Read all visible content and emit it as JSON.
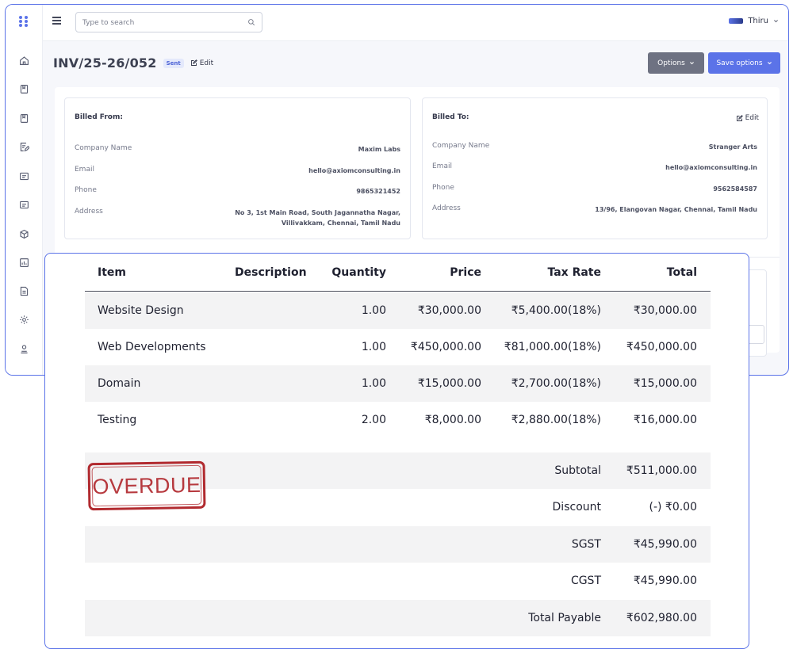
{
  "topbar": {
    "search_placeholder": "Type to search",
    "user_name": "Thiru"
  },
  "icons": {
    "logo": "app-logo-icon",
    "menu": "hamburger-icon",
    "search": "search-icon",
    "user_caret": "chevron-down-icon"
  },
  "sidebar": {
    "items": [
      "home-icon",
      "invoice-icon",
      "quote-icon",
      "edit-note-icon",
      "card-icon",
      "wallet-icon",
      "box-icon",
      "report-icon",
      "document-icon",
      "settings-icon",
      "user-icon"
    ]
  },
  "invoice": {
    "number": "INV/25-26/052",
    "status": "Sent",
    "edit_label": "Edit"
  },
  "actions": {
    "options_label": "Options",
    "save_label": "Save options"
  },
  "billed_from": {
    "title": "Billed From:",
    "fields": [
      {
        "label": "Company Name",
        "value": "Maxim Labs"
      },
      {
        "label": "Email",
        "value": "hello@axiomconsulting.in"
      },
      {
        "label": "Phone",
        "value": "9865321452"
      },
      {
        "label": "Address",
        "value": "No 3, 1st Main Road, South Jagannatha Nagar,",
        "value2": "Villivakkam, Chennai, Tamil Nadu"
      }
    ]
  },
  "billed_to": {
    "title": "Billed To:",
    "edit_label": "Edit",
    "fields": [
      {
        "label": "Company Name",
        "value": "Stranger Arts"
      },
      {
        "label": "Email",
        "value": "hello@axiomconsulting.in"
      },
      {
        "label": "Phone",
        "value": "9562584587"
      },
      {
        "label": "Address",
        "value": "13/96, Elangovan Nagar, Chennai, Tamil Nadu"
      }
    ]
  },
  "table": {
    "headers": {
      "item": "Item",
      "description": "Description",
      "quantity": "Quantity",
      "price": "Price",
      "tax_rate": "Tax Rate",
      "total": "Total"
    },
    "rows": [
      {
        "item": "Website Design",
        "description": "",
        "quantity": "1.00",
        "price": "₹30,000.00",
        "tax": "₹5,400.00(18%)",
        "total": "₹30,000.00"
      },
      {
        "item": "Web Developments",
        "description": "",
        "quantity": "1.00",
        "price": "₹450,000.00",
        "tax": "₹81,000.00(18%)",
        "total": "₹450,000.00"
      },
      {
        "item": "Domain",
        "description": "",
        "quantity": "1.00",
        "price": "₹15,000.00",
        "tax": "₹2,700.00(18%)",
        "total": "₹15,000.00"
      },
      {
        "item": "Testing",
        "description": "",
        "quantity": "2.00",
        "price": "₹8,000.00",
        "tax": "₹2,880.00(18%)",
        "total": "₹16,000.00"
      }
    ]
  },
  "summary": [
    {
      "label": "Subtotal",
      "value": "₹511,000.00"
    },
    {
      "label": "Discount",
      "value": "(-) ₹0.00"
    },
    {
      "label": "SGST",
      "value": "₹45,990.00"
    },
    {
      "label": "CGST",
      "value": "₹45,990.00"
    },
    {
      "label": "Total Payable",
      "value": "₹602,980.00"
    }
  ],
  "stamp": {
    "text": "OVERDUE",
    "color": "#b12a2f"
  },
  "colors": {
    "accent": "#5b73e8",
    "options_button": "#6e7282",
    "stamp": "#b12a2f"
  }
}
